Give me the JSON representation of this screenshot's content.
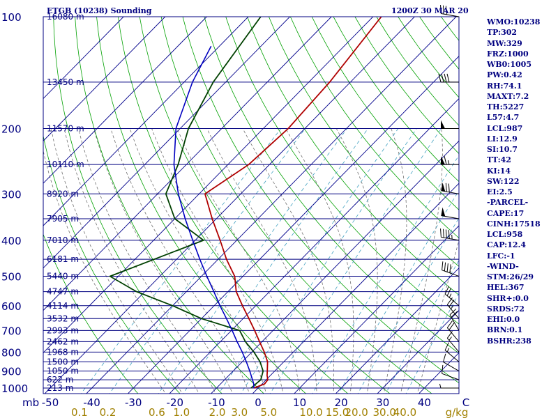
{
  "header": {
    "station": "ETGB (10238) Sounding",
    "time": "1200Z 30 MAR 20"
  },
  "indices": [
    "WMO:10238",
    "TP:302",
    "MW:329",
    "FRZ:1000",
    "WB0:1005",
    "PW:0.42",
    "RH:74.1",
    "MAXT:7.2",
    "TH:5227",
    "L57:4.7",
    "LCL:987",
    "LI:12.9",
    "SI:10.7",
    "TT:42",
    "KI:14",
    "SW:122",
    "EI:2.5",
    "-PARCEL-",
    "CAPE:17",
    "CINH:17518",
    "LCL:958",
    "CAP:12.4",
    "LFC:-1",
    "-WIND-",
    "STM:26/29",
    "HEL:367",
    "SHR+:0.0",
    "SRDS:72",
    "EHI:0.0",
    "BRN:0.1",
    "BSHR:238"
  ],
  "colors": {
    "background": "#ffffff",
    "isobars": "#000080",
    "isotherms": "#00008b",
    "dry_adiabats": "#00a000",
    "moist_adiabats": "#707070",
    "mixing_ratio": "#40a0c0",
    "temperature": "#b00000",
    "dewpoint": "#004000",
    "parcel": "#0000c0",
    "wind_barbs": "#000000",
    "text": "#000080",
    "mixing_ratio_labels": "#a08000"
  },
  "chart_data": {
    "type": "line",
    "title": "ETGB (10238) Sounding",
    "subtitle": "1200Z 30 MAR 20",
    "x_axis": {
      "unit": "C",
      "ticks": [
        -50,
        -40,
        -30,
        -20,
        -10,
        0,
        10,
        20,
        30,
        40,
        50
      ],
      "tick_labels": [
        "-50",
        "-40",
        "-30",
        "-20",
        "-10",
        "0",
        "10",
        "20",
        "30",
        "40",
        "C"
      ],
      "range_bottom": [
        -50,
        50
      ]
    },
    "y_axis": {
      "unit": "mb",
      "scale": "log",
      "ticks": [
        100,
        200,
        300,
        400,
        500,
        600,
        700,
        800,
        900,
        1000
      ],
      "tick_labels": [
        "100",
        "200",
        "300",
        "400",
        "500",
        "600",
        "700",
        "800",
        "900",
        "1000"
      ],
      "range": [
        1050,
        100
      ],
      "unit_label": "mb"
    },
    "mixing_ratio": {
      "unit": "g/kg",
      "labels": [
        "0.1",
        "0.2",
        "0.6",
        "1.0",
        "2.0",
        "3.0",
        "5.0",
        "10.0",
        "15.0",
        "20.0",
        "30.0",
        "40.0"
      ],
      "values": [
        0.1,
        0.2,
        0.6,
        1.0,
        2.0,
        3.0,
        5.0,
        10.0,
        15.0,
        20.0,
        30.0,
        40.0
      ]
    },
    "height_labels": [
      {
        "p": 100,
        "label": "16080 m"
      },
      {
        "p": 150,
        "label": "13450 m"
      },
      {
        "p": 200,
        "label": "11570 m"
      },
      {
        "p": 250,
        "label": "10110 m"
      },
      {
        "p": 300,
        "label": "8920 m"
      },
      {
        "p": 350,
        "label": "7905 m"
      },
      {
        "p": 400,
        "label": "7010 m"
      },
      {
        "p": 450,
        "label": "6181 m"
      },
      {
        "p": 500,
        "label": "5440 m"
      },
      {
        "p": 550,
        "label": "4747 m"
      },
      {
        "p": 600,
        "label": "4114 m"
      },
      {
        "p": 650,
        "label": "3532 m"
      },
      {
        "p": 700,
        "label": "2993 m"
      },
      {
        "p": 750,
        "label": "2462 m"
      },
      {
        "p": 800,
        "label": "1968 m"
      },
      {
        "p": 850,
        "label": "1500 m"
      },
      {
        "p": 900,
        "label": "1050 m"
      },
      {
        "p": 950,
        "label": "622 m"
      },
      {
        "p": 1000,
        "label": "213 m"
      }
    ],
    "series": [
      {
        "key": "temperature",
        "points": [
          [
            1000,
            -1.0
          ],
          [
            975,
            0.6
          ],
          [
            950,
            0.4
          ],
          [
            925,
            -0.8
          ],
          [
            900,
            -1.8
          ],
          [
            850,
            -3.9
          ],
          [
            800,
            -7.0
          ],
          [
            750,
            -10.6
          ],
          [
            700,
            -14.4
          ],
          [
            650,
            -18.6
          ],
          [
            600,
            -23.2
          ],
          [
            550,
            -28.0
          ],
          [
            500,
            -32.0
          ],
          [
            450,
            -38.0
          ],
          [
            400,
            -44.0
          ],
          [
            350,
            -51.0
          ],
          [
            300,
            -58.6
          ],
          [
            250,
            -55.0
          ],
          [
            200,
            -54.0
          ],
          [
            150,
            -55.0
          ],
          [
            100,
            -58.0
          ]
        ]
      },
      {
        "key": "dewpoint",
        "points": [
          [
            1000,
            -1.7
          ],
          [
            950,
            -1.3
          ],
          [
            900,
            -2.8
          ],
          [
            850,
            -5.7
          ],
          [
            800,
            -9.5
          ],
          [
            750,
            -14.0
          ],
          [
            700,
            -18.0
          ],
          [
            650,
            -30.0
          ],
          [
            600,
            -40.0
          ],
          [
            550,
            -52.0
          ],
          [
            500,
            -62.0
          ],
          [
            400,
            -48.0
          ],
          [
            350,
            -60.0
          ],
          [
            300,
            -68.0
          ],
          [
            250,
            -72.0
          ],
          [
            200,
            -78.0
          ],
          [
            150,
            -83.0
          ],
          [
            100,
            -87.0
          ]
        ]
      },
      {
        "key": "parcel",
        "points": [
          [
            1000,
            -1.0
          ],
          [
            975,
            -2.0
          ],
          [
            950,
            -3.3
          ],
          [
            900,
            -6.0
          ],
          [
            850,
            -9.0
          ],
          [
            800,
            -12.3
          ],
          [
            750,
            -16.0
          ],
          [
            700,
            -19.8
          ],
          [
            650,
            -24.0
          ],
          [
            600,
            -28.6
          ],
          [
            550,
            -33.4
          ],
          [
            500,
            -38.7
          ],
          [
            450,
            -44.4
          ],
          [
            400,
            -50.6
          ],
          [
            350,
            -57.5
          ],
          [
            300,
            -65.0
          ],
          [
            250,
            -73.0
          ],
          [
            200,
            -81.0
          ],
          [
            150,
            -88.0
          ],
          [
            120,
            -92.0
          ]
        ]
      }
    ],
    "wind_barbs": [
      {
        "p": 1000,
        "dir": 270,
        "kt": 5
      },
      {
        "p": 950,
        "dir": 290,
        "kt": 10
      },
      {
        "p": 900,
        "dir": 300,
        "kt": 10
      },
      {
        "p": 850,
        "dir": 310,
        "kt": 15
      },
      {
        "p": 800,
        "dir": 320,
        "kt": 15
      },
      {
        "p": 750,
        "dir": 320,
        "kt": 20
      },
      {
        "p": 700,
        "dir": 330,
        "kt": 20
      },
      {
        "p": 650,
        "dir": 320,
        "kt": 25
      },
      {
        "p": 600,
        "dir": 310,
        "kt": 25
      },
      {
        "p": 500,
        "dir": 290,
        "kt": 40
      },
      {
        "p": 400,
        "dir": 280,
        "kt": 45
      },
      {
        "p": 350,
        "dir": 280,
        "kt": 50
      },
      {
        "p": 300,
        "dir": 280,
        "kt": 70
      },
      {
        "p": 250,
        "dir": 270,
        "kt": 65
      },
      {
        "p": 200,
        "dir": 270,
        "kt": 50
      },
      {
        "p": 150,
        "dir": 270,
        "kt": 40
      },
      {
        "p": 100,
        "dir": 280,
        "kt": 30
      }
    ]
  }
}
